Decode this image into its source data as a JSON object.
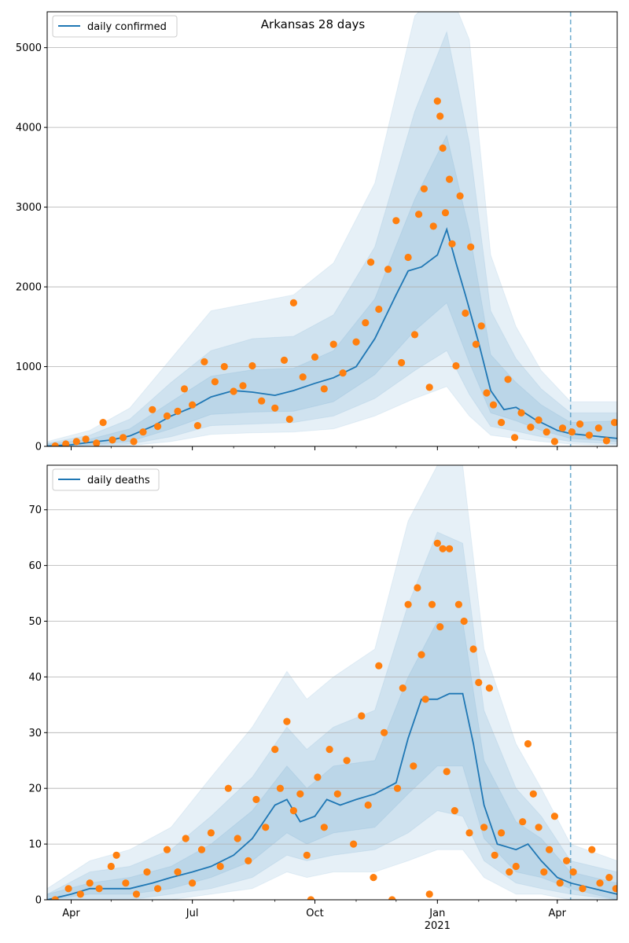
{
  "title": "Arkansas 28 days",
  "colors": {
    "model": "#1f77b4",
    "observed": "#ff7f0e",
    "band": "#1f77b4",
    "grid": "#b0b0b0",
    "marker_line": "#4f9ac4"
  },
  "x_axis": {
    "ticks": [
      {
        "date": "2020-04-01",
        "label": "Apr"
      },
      {
        "date": "2020-07-01",
        "label": "Jul"
      },
      {
        "date": "2020-10-01",
        "label": "Oct"
      },
      {
        "date": "2021-01-01",
        "label": "Jan"
      },
      {
        "date": "2021-04-01",
        "label": "Apr"
      }
    ],
    "year_label": "2021",
    "range": [
      "2020-03-14",
      "2021-05-16"
    ],
    "forecast_start": "2021-04-11"
  },
  "chart_data": [
    {
      "type": "line",
      "legend": "daily confirmed",
      "legend_position": "top-left",
      "grid": "horizontal",
      "ylim": [
        0,
        5450
      ],
      "yticks": [
        "0",
        "1000",
        "2000",
        "3000",
        "4000",
        "5000"
      ],
      "model_points": [
        [
          "2020-03-14",
          5
        ],
        [
          "2020-04-01",
          20
        ],
        [
          "2020-04-15",
          50
        ],
        [
          "2020-05-01",
          80
        ],
        [
          "2020-05-15",
          130
        ],
        [
          "2020-06-01",
          250
        ],
        [
          "2020-06-15",
          380
        ],
        [
          "2020-07-01",
          490
        ],
        [
          "2020-07-15",
          620
        ],
        [
          "2020-08-01",
          700
        ],
        [
          "2020-08-15",
          680
        ],
        [
          "2020-09-01",
          640
        ],
        [
          "2020-09-15",
          700
        ],
        [
          "2020-10-01",
          790
        ],
        [
          "2020-10-15",
          860
        ],
        [
          "2020-11-01",
          1000
        ],
        [
          "2020-11-15",
          1350
        ],
        [
          "2020-12-01",
          1900
        ],
        [
          "2020-12-10",
          2200
        ],
        [
          "2020-12-20",
          2250
        ],
        [
          "2021-01-01",
          2400
        ],
        [
          "2021-01-08",
          2720
        ],
        [
          "2021-01-15",
          2300
        ],
        [
          "2021-01-22",
          1900
        ],
        [
          "2021-02-01",
          1300
        ],
        [
          "2021-02-10",
          700
        ],
        [
          "2021-02-20",
          460
        ],
        [
          "2021-03-01",
          490
        ],
        [
          "2021-03-15",
          340
        ],
        [
          "2021-04-01",
          200
        ],
        [
          "2021-04-11",
          160
        ],
        [
          "2021-05-16",
          100
        ]
      ],
      "band_points": [
        [
          "2020-03-14",
          0,
          30,
          0,
          40,
          0,
          60
        ],
        [
          "2020-04-15",
          20,
          90,
          10,
          140,
          0,
          200
        ],
        [
          "2020-05-15",
          60,
          220,
          30,
          340,
          10,
          480
        ],
        [
          "2020-06-15",
          220,
          560,
          120,
          800,
          60,
          1100
        ],
        [
          "2020-07-15",
          400,
          880,
          260,
          1200,
          150,
          1700
        ],
        [
          "2020-08-15",
          430,
          960,
          280,
          1350,
          170,
          1800
        ],
        [
          "2020-09-15",
          440,
          980,
          300,
          1380,
          180,
          1900
        ],
        [
          "2020-10-15",
          560,
          1200,
          380,
          1650,
          220,
          2300
        ],
        [
          "2020-11-15",
          900,
          1850,
          600,
          2500,
          380,
          3300
        ],
        [
          "2020-12-15",
          1450,
          3100,
          950,
          4200,
          600,
          5400
        ],
        [
          "2021-01-08",
          1800,
          3900,
          1200,
          5200,
          750,
          5800
        ],
        [
          "2021-01-25",
          1050,
          2700,
          650,
          3800,
          380,
          5100
        ],
        [
          "2021-02-10",
          420,
          1150,
          250,
          1700,
          140,
          2400
        ],
        [
          "2021-03-01",
          320,
          800,
          190,
          1100,
          100,
          1500
        ],
        [
          "2021-03-20",
          200,
          520,
          120,
          720,
          60,
          950
        ],
        [
          "2021-04-11",
          100,
          300,
          60,
          420,
          30,
          560
        ],
        [
          "2021-05-16",
          60,
          320,
          30,
          420,
          10,
          560
        ]
      ],
      "observed_points": [
        [
          "2020-03-20",
          5
        ],
        [
          "2020-03-28",
          30
        ],
        [
          "2020-04-05",
          60
        ],
        [
          "2020-04-12",
          90
        ],
        [
          "2020-04-20",
          40
        ],
        [
          "2020-04-25",
          300
        ],
        [
          "2020-05-02",
          80
        ],
        [
          "2020-05-10",
          110
        ],
        [
          "2020-05-18",
          60
        ],
        [
          "2020-05-25",
          180
        ],
        [
          "2020-06-01",
          460
        ],
        [
          "2020-06-05",
          250
        ],
        [
          "2020-06-12",
          380
        ],
        [
          "2020-06-20",
          440
        ],
        [
          "2020-06-25",
          720
        ],
        [
          "2020-07-01",
          520
        ],
        [
          "2020-07-05",
          260
        ],
        [
          "2020-07-10",
          1060
        ],
        [
          "2020-07-18",
          810
        ],
        [
          "2020-07-25",
          1000
        ],
        [
          "2020-08-01",
          690
        ],
        [
          "2020-08-08",
          760
        ],
        [
          "2020-08-15",
          1010
        ],
        [
          "2020-08-22",
          570
        ],
        [
          "2020-09-01",
          480
        ],
        [
          "2020-09-08",
          1080
        ],
        [
          "2020-09-12",
          340
        ],
        [
          "2020-09-15",
          1800
        ],
        [
          "2020-09-22",
          870
        ],
        [
          "2020-10-01",
          1120
        ],
        [
          "2020-10-08",
          720
        ],
        [
          "2020-10-15",
          1280
        ],
        [
          "2020-10-22",
          920
        ],
        [
          "2020-11-01",
          1310
        ],
        [
          "2020-11-08",
          1550
        ],
        [
          "2020-11-12",
          2310
        ],
        [
          "2020-11-18",
          1720
        ],
        [
          "2020-11-25",
          2220
        ],
        [
          "2020-12-01",
          2830
        ],
        [
          "2020-12-05",
          1050
        ],
        [
          "2020-12-10",
          2370
        ],
        [
          "2020-12-15",
          1400
        ],
        [
          "2020-12-18",
          2910
        ],
        [
          "2020-12-22",
          3230
        ],
        [
          "2020-12-26",
          740
        ],
        [
          "2020-12-29",
          2760
        ],
        [
          "2021-01-01",
          4330
        ],
        [
          "2021-01-03",
          4140
        ],
        [
          "2021-01-05",
          3740
        ],
        [
          "2021-01-07",
          2930
        ],
        [
          "2021-01-10",
          3350
        ],
        [
          "2021-01-12",
          2540
        ],
        [
          "2021-01-15",
          1010
        ],
        [
          "2021-01-18",
          3140
        ],
        [
          "2021-01-22",
          1670
        ],
        [
          "2021-01-26",
          2500
        ],
        [
          "2021-01-30",
          1280
        ],
        [
          "2021-02-03",
          1510
        ],
        [
          "2021-02-07",
          670
        ],
        [
          "2021-02-12",
          520
        ],
        [
          "2021-02-18",
          300
        ],
        [
          "2021-02-23",
          840
        ],
        [
          "2021-02-28",
          110
        ],
        [
          "2021-03-05",
          420
        ],
        [
          "2021-03-12",
          240
        ],
        [
          "2021-03-18",
          330
        ],
        [
          "2021-03-24",
          180
        ],
        [
          "2021-03-30",
          60
        ],
        [
          "2021-04-05",
          230
        ],
        [
          "2021-04-12",
          180
        ],
        [
          "2021-04-18",
          280
        ],
        [
          "2021-04-25",
          140
        ],
        [
          "2021-05-02",
          230
        ],
        [
          "2021-05-08",
          70
        ],
        [
          "2021-05-14",
          300
        ]
      ]
    },
    {
      "type": "line",
      "legend": "daily deaths",
      "legend_position": "top-left",
      "grid": "horizontal",
      "ylim": [
        0,
        78
      ],
      "yticks": [
        "0",
        "10",
        "20",
        "30",
        "40",
        "50",
        "60",
        "70"
      ],
      "model_points": [
        [
          "2020-03-14",
          0
        ],
        [
          "2020-04-01",
          1
        ],
        [
          "2020-04-15",
          2
        ],
        [
          "2020-05-15",
          2
        ],
        [
          "2020-06-01",
          3
        ],
        [
          "2020-06-15",
          4
        ],
        [
          "2020-07-01",
          5
        ],
        [
          "2020-07-15",
          6
        ],
        [
          "2020-08-01",
          8
        ],
        [
          "2020-08-15",
          11
        ],
        [
          "2020-09-01",
          17
        ],
        [
          "2020-09-10",
          18
        ],
        [
          "2020-09-20",
          14
        ],
        [
          "2020-10-01",
          15
        ],
        [
          "2020-10-10",
          18
        ],
        [
          "2020-10-20",
          17
        ],
        [
          "2020-11-01",
          18
        ],
        [
          "2020-11-15",
          19
        ],
        [
          "2020-12-01",
          21
        ],
        [
          "2020-12-10",
          29
        ],
        [
          "2020-12-20",
          36
        ],
        [
          "2021-01-01",
          36
        ],
        [
          "2021-01-10",
          37
        ],
        [
          "2021-01-20",
          37
        ],
        [
          "2021-01-28",
          28
        ],
        [
          "2021-02-05",
          17
        ],
        [
          "2021-02-15",
          10
        ],
        [
          "2021-03-01",
          9
        ],
        [
          "2021-03-10",
          10
        ],
        [
          "2021-03-20",
          7
        ],
        [
          "2021-04-01",
          4
        ],
        [
          "2021-04-11",
          3
        ],
        [
          "2021-05-16",
          1
        ]
      ],
      "band_points": [
        [
          "2020-03-14",
          0,
          1,
          0,
          1,
          0,
          2
        ],
        [
          "2020-04-15",
          1,
          3,
          0,
          5,
          0,
          7
        ],
        [
          "2020-05-15",
          1,
          4,
          0,
          6,
          0,
          9
        ],
        [
          "2020-06-15",
          2,
          6,
          1,
          9,
          0,
          13
        ],
        [
          "2020-07-15",
          4,
          10,
          2,
          15,
          1,
          22
        ],
        [
          "2020-08-15",
          7,
          16,
          4,
          22,
          2,
          31
        ],
        [
          "2020-09-10",
          12,
          24,
          8,
          31,
          5,
          41
        ],
        [
          "2020-09-25",
          10,
          20,
          7,
          27,
          4,
          36
        ],
        [
          "2020-10-15",
          12,
          24,
          8,
          31,
          5,
          40
        ],
        [
          "2020-11-15",
          13,
          25,
          9,
          34,
          5,
          45
        ],
        [
          "2020-12-10",
          19,
          40,
          12,
          53,
          7,
          68
        ],
        [
          "2021-01-01",
          24,
          50,
          16,
          66,
          9,
          78
        ],
        [
          "2021-01-20",
          24,
          50,
          15,
          64,
          9,
          78
        ],
        [
          "2021-02-05",
          11,
          25,
          7,
          34,
          4,
          45
        ],
        [
          "2021-03-01",
          5,
          14,
          3,
          20,
          1,
          28
        ],
        [
          "2021-03-20",
          4,
          11,
          2,
          15,
          1,
          20
        ],
        [
          "2021-04-11",
          2,
          5,
          1,
          7,
          0,
          10
        ],
        [
          "2021-05-16",
          0,
          3,
          0,
          5,
          0,
          7
        ]
      ],
      "observed_points": [
        [
          "2020-03-20",
          0
        ],
        [
          "2020-03-30",
          2
        ],
        [
          "2020-04-08",
          1
        ],
        [
          "2020-04-15",
          3
        ],
        [
          "2020-04-22",
          2
        ],
        [
          "2020-05-01",
          6
        ],
        [
          "2020-05-05",
          8
        ],
        [
          "2020-05-12",
          3
        ],
        [
          "2020-05-20",
          1
        ],
        [
          "2020-05-28",
          5
        ],
        [
          "2020-06-05",
          2
        ],
        [
          "2020-06-12",
          9
        ],
        [
          "2020-06-20",
          5
        ],
        [
          "2020-06-26",
          11
        ],
        [
          "2020-07-01",
          3
        ],
        [
          "2020-07-08",
          9
        ],
        [
          "2020-07-15",
          12
        ],
        [
          "2020-07-22",
          6
        ],
        [
          "2020-07-28",
          20
        ],
        [
          "2020-08-04",
          11
        ],
        [
          "2020-08-12",
          7
        ],
        [
          "2020-08-18",
          18
        ],
        [
          "2020-08-25",
          13
        ],
        [
          "2020-09-01",
          27
        ],
        [
          "2020-09-05",
          20
        ],
        [
          "2020-09-10",
          32
        ],
        [
          "2020-09-15",
          16
        ],
        [
          "2020-09-20",
          19
        ],
        [
          "2020-09-25",
          8
        ],
        [
          "2020-09-28",
          0
        ],
        [
          "2020-10-03",
          22
        ],
        [
          "2020-10-08",
          13
        ],
        [
          "2020-10-12",
          27
        ],
        [
          "2020-10-18",
          19
        ],
        [
          "2020-10-25",
          25
        ],
        [
          "2020-10-30",
          10
        ],
        [
          "2020-11-05",
          33
        ],
        [
          "2020-11-10",
          17
        ],
        [
          "2020-11-14",
          4
        ],
        [
          "2020-11-18",
          42
        ],
        [
          "2020-11-22",
          30
        ],
        [
          "2020-11-28",
          0
        ],
        [
          "2020-12-02",
          20
        ],
        [
          "2020-12-06",
          38
        ],
        [
          "2020-12-10",
          53
        ],
        [
          "2020-12-14",
          24
        ],
        [
          "2020-12-17",
          56
        ],
        [
          "2020-12-20",
          44
        ],
        [
          "2020-12-23",
          36
        ],
        [
          "2020-12-26",
          1
        ],
        [
          "2020-12-28",
          53
        ],
        [
          "2021-01-01",
          64
        ],
        [
          "2021-01-03",
          49
        ],
        [
          "2021-01-05",
          63
        ],
        [
          "2021-01-08",
          23
        ],
        [
          "2021-01-10",
          63
        ],
        [
          "2021-01-14",
          16
        ],
        [
          "2021-01-17",
          53
        ],
        [
          "2021-01-21",
          50
        ],
        [
          "2021-01-25",
          12
        ],
        [
          "2021-01-28",
          45
        ],
        [
          "2021-02-01",
          39
        ],
        [
          "2021-02-05",
          13
        ],
        [
          "2021-02-09",
          38
        ],
        [
          "2021-02-13",
          8
        ],
        [
          "2021-02-18",
          12
        ],
        [
          "2021-02-24",
          5
        ],
        [
          "2021-03-01",
          6
        ],
        [
          "2021-03-06",
          14
        ],
        [
          "2021-03-10",
          28
        ],
        [
          "2021-03-14",
          19
        ],
        [
          "2021-03-18",
          13
        ],
        [
          "2021-03-22",
          5
        ],
        [
          "2021-03-26",
          9
        ],
        [
          "2021-03-30",
          15
        ],
        [
          "2021-04-03",
          3
        ],
        [
          "2021-04-08",
          7
        ],
        [
          "2021-04-13",
          5
        ],
        [
          "2021-04-20",
          2
        ],
        [
          "2021-04-27",
          9
        ],
        [
          "2021-05-03",
          3
        ],
        [
          "2021-05-10",
          4
        ],
        [
          "2021-05-15",
          2
        ]
      ]
    }
  ]
}
